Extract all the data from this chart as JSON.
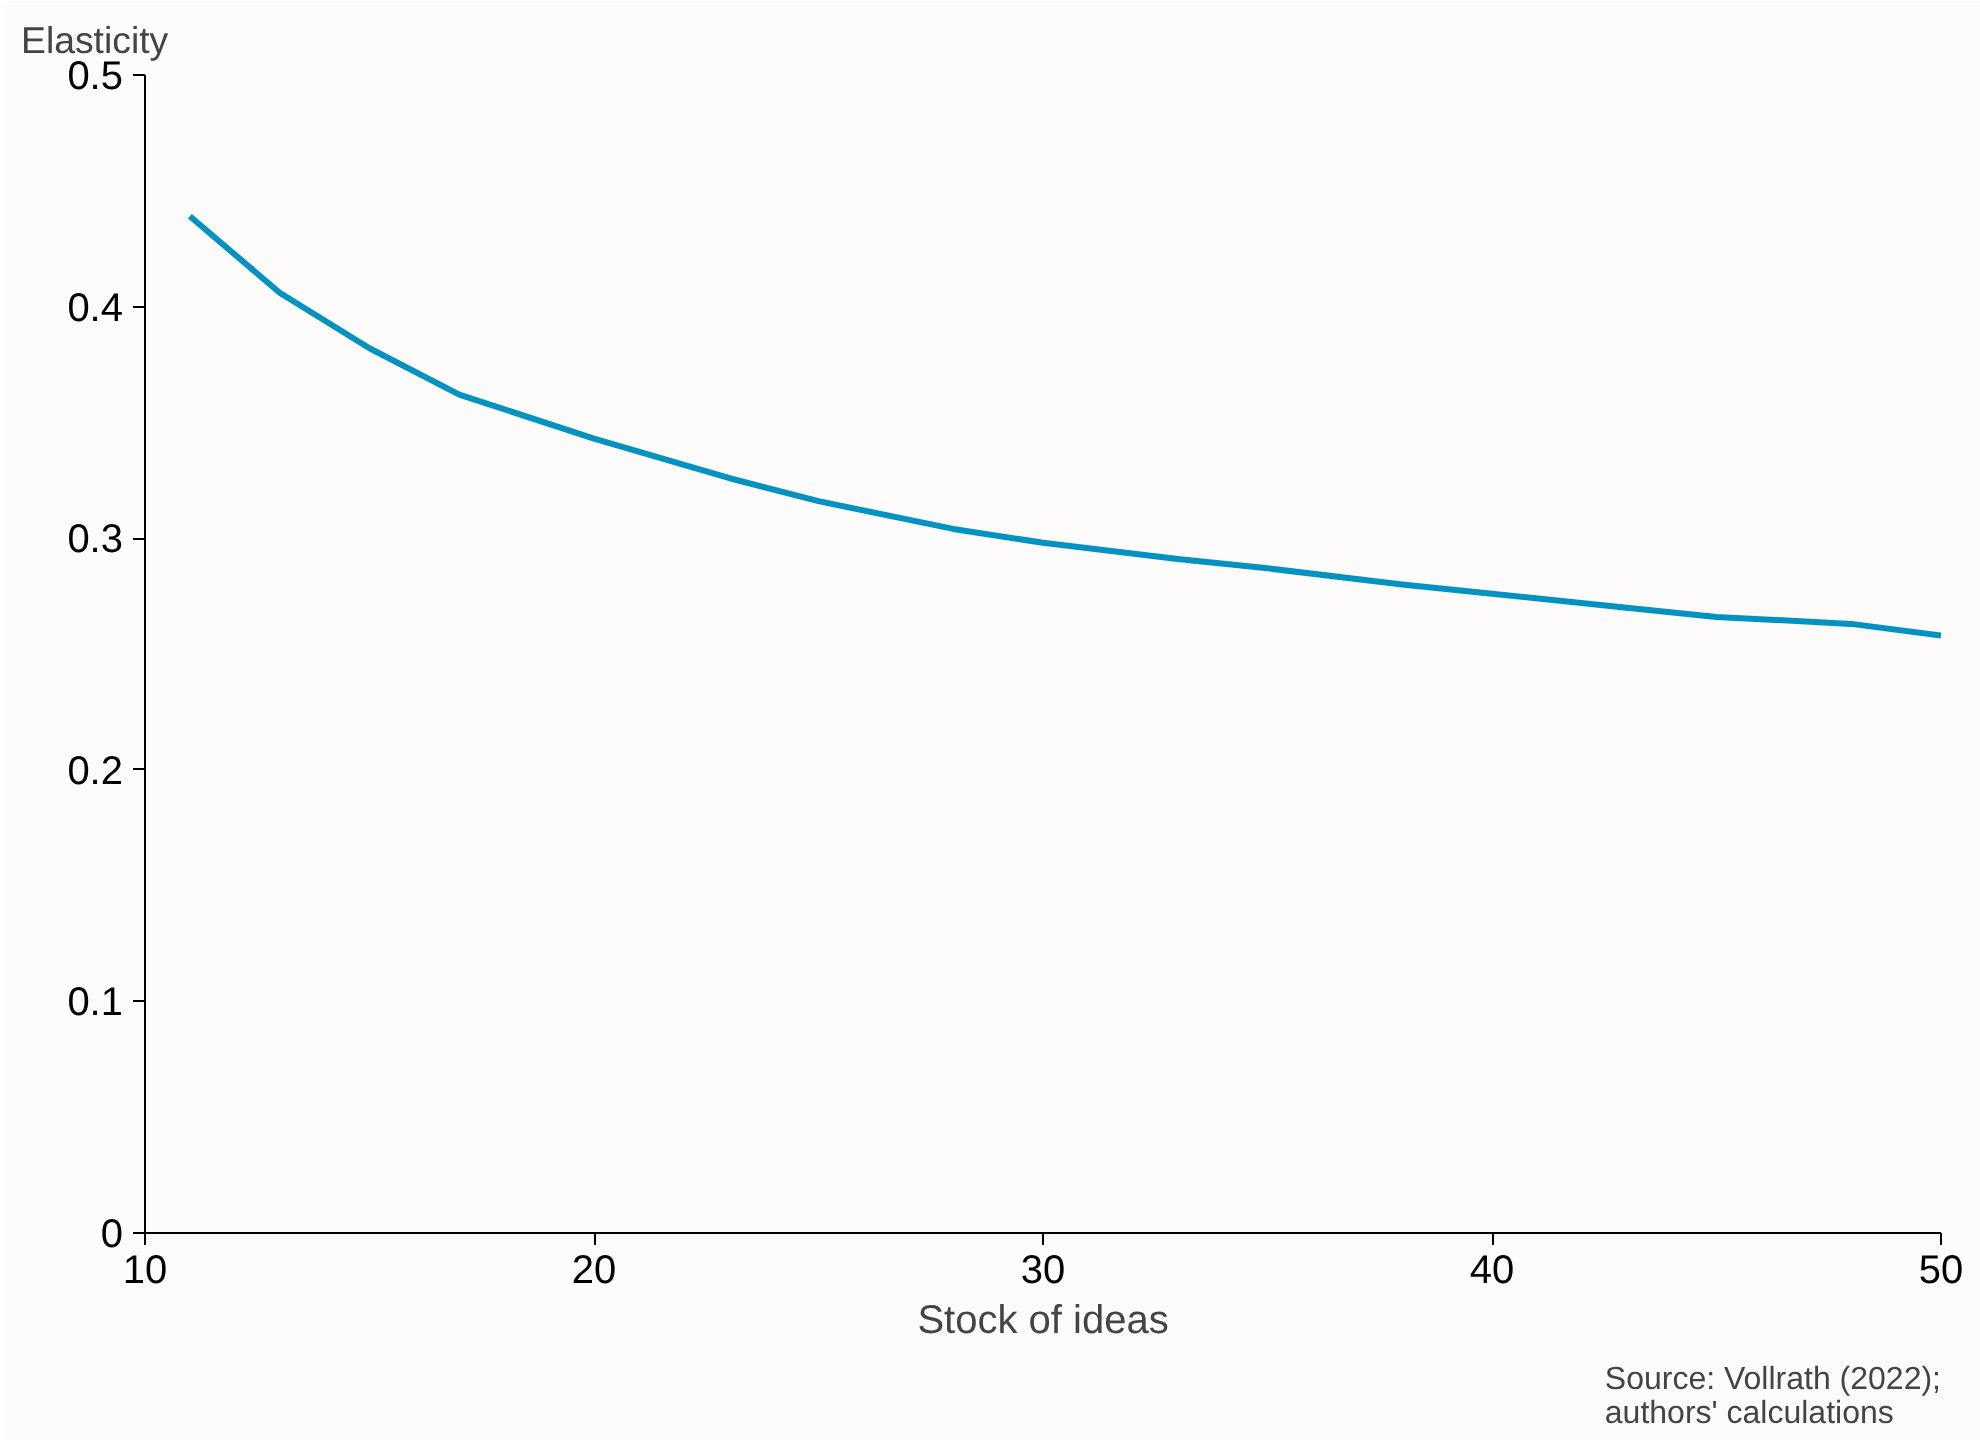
{
  "chart_data": {
    "type": "line",
    "xlabel": "Stock of ideas",
    "ylabel": "Elasticity",
    "annotations": [
      "Source: Vollrath (2022);\nauthors' calculations"
    ],
    "x": [
      11,
      13,
      15,
      17,
      20,
      23,
      25,
      28,
      30,
      33,
      35,
      38,
      40,
      43,
      45,
      48,
      50
    ],
    "series": [
      {
        "color": "#0092c0",
        "values": [
          0.439,
          0.406,
          0.382,
          0.362,
          0.343,
          0.326,
          0.316,
          0.304,
          0.298,
          0.291,
          0.287,
          0.28,
          0.276,
          0.27,
          0.266,
          0.263,
          0.258
        ]
      }
    ],
    "xlim": [
      10,
      50
    ],
    "ylim": [
      0,
      0.5
    ],
    "xticks": [
      10,
      20,
      30,
      40,
      50
    ],
    "yticks": [
      0,
      0.1,
      0.2,
      0.3,
      0.4,
      0.5
    ],
    "grid": false,
    "marker": "none",
    "line_style": "solid"
  }
}
